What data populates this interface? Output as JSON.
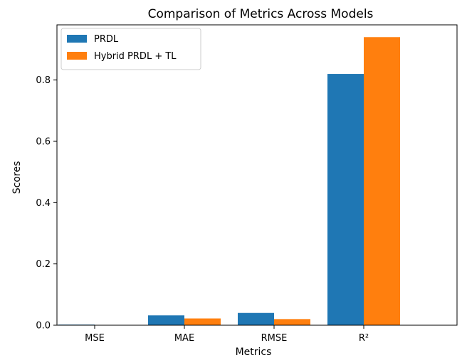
{
  "chart_data": {
    "type": "bar",
    "title": "Comparison of Metrics Across Models",
    "xlabel": "Metrics",
    "ylabel": "Scores",
    "categories": [
      "MSE",
      "MAE",
      "RMSE",
      "R²"
    ],
    "series": [
      {
        "name": "PRDL",
        "color": "#1f77b4",
        "values": [
          0.002,
          0.032,
          0.04,
          0.82
        ]
      },
      {
        "name": "Hybrid PRDL + TL",
        "color": "#ff7f0e",
        "values": [
          0.0004,
          0.022,
          0.02,
          0.94
        ]
      }
    ],
    "ylim": [
      0,
      0.98
    ],
    "yticks": [
      "0.0",
      "0.2",
      "0.4",
      "0.6",
      "0.8"
    ],
    "grid": false,
    "legend_position": "top-left"
  }
}
